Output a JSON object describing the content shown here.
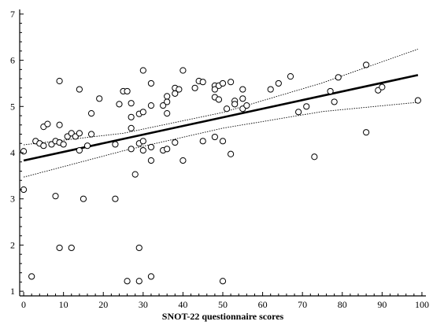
{
  "chart_data": {
    "type": "scatter",
    "xlabel": "SNOT-22 questionnaire scores",
    "ylabel": "",
    "xlim": [
      -1,
      101
    ],
    "ylim": [
      0.9,
      7.1
    ],
    "x_ticks": [
      0,
      10,
      20,
      30,
      40,
      50,
      60,
      70,
      80,
      90,
      100
    ],
    "y_ticks": [
      1,
      2,
      3,
      4,
      5,
      6,
      7
    ],
    "grid": false,
    "points": [
      {
        "x": 0,
        "y": 4.03
      },
      {
        "x": 0,
        "y": 3.2
      },
      {
        "x": 2,
        "y": 1.32
      },
      {
        "x": 3,
        "y": 4.25
      },
      {
        "x": 4,
        "y": 4.2
      },
      {
        "x": 5,
        "y": 4.56
      },
      {
        "x": 5,
        "y": 4.15
      },
      {
        "x": 6,
        "y": 4.62
      },
      {
        "x": 7,
        "y": 4.18
      },
      {
        "x": 8,
        "y": 4.25
      },
      {
        "x": 8,
        "y": 3.06
      },
      {
        "x": 9,
        "y": 4.22
      },
      {
        "x": 9,
        "y": 4.6
      },
      {
        "x": 9,
        "y": 5.55
      },
      {
        "x": 9,
        "y": 1.94
      },
      {
        "x": 10,
        "y": 4.18
      },
      {
        "x": 11,
        "y": 4.35
      },
      {
        "x": 12,
        "y": 4.42
      },
      {
        "x": 12,
        "y": 1.94
      },
      {
        "x": 13,
        "y": 4.35
      },
      {
        "x": 14,
        "y": 4.42
      },
      {
        "x": 14,
        "y": 4.05
      },
      {
        "x": 14,
        "y": 5.37
      },
      {
        "x": 15,
        "y": 3.0
      },
      {
        "x": 16,
        "y": 4.15
      },
      {
        "x": 17,
        "y": 4.4
      },
      {
        "x": 17,
        "y": 4.85
      },
      {
        "x": 19,
        "y": 5.17
      },
      {
        "x": 23,
        "y": 4.18
      },
      {
        "x": 23,
        "y": 3.0
      },
      {
        "x": 24,
        "y": 5.05
      },
      {
        "x": 25,
        "y": 5.33
      },
      {
        "x": 26,
        "y": 5.33
      },
      {
        "x": 26,
        "y": 1.22
      },
      {
        "x": 27,
        "y": 4.53
      },
      {
        "x": 27,
        "y": 4.08
      },
      {
        "x": 27,
        "y": 4.77
      },
      {
        "x": 27,
        "y": 5.07
      },
      {
        "x": 28,
        "y": 3.53
      },
      {
        "x": 29,
        "y": 4.2
      },
      {
        "x": 29,
        "y": 4.84
      },
      {
        "x": 29,
        "y": 1.94
      },
      {
        "x": 29,
        "y": 1.22
      },
      {
        "x": 30,
        "y": 4.25
      },
      {
        "x": 30,
        "y": 4.05
      },
      {
        "x": 30,
        "y": 4.88
      },
      {
        "x": 30,
        "y": 5.78
      },
      {
        "x": 32,
        "y": 5.5
      },
      {
        "x": 32,
        "y": 5.02
      },
      {
        "x": 32,
        "y": 4.12
      },
      {
        "x": 32,
        "y": 3.83
      },
      {
        "x": 32,
        "y": 1.32
      },
      {
        "x": 35,
        "y": 5.02
      },
      {
        "x": 35,
        "y": 4.05
      },
      {
        "x": 36,
        "y": 4.85
      },
      {
        "x": 36,
        "y": 5.1
      },
      {
        "x": 36,
        "y": 5.22
      },
      {
        "x": 36,
        "y": 4.08
      },
      {
        "x": 38,
        "y": 5.28
      },
      {
        "x": 38,
        "y": 5.4
      },
      {
        "x": 38,
        "y": 4.22
      },
      {
        "x": 39,
        "y": 5.37
      },
      {
        "x": 40,
        "y": 5.78
      },
      {
        "x": 40,
        "y": 3.83
      },
      {
        "x": 43,
        "y": 5.4
      },
      {
        "x": 44,
        "y": 5.55
      },
      {
        "x": 45,
        "y": 5.53
      },
      {
        "x": 45,
        "y": 4.25
      },
      {
        "x": 48,
        "y": 5.45
      },
      {
        "x": 48,
        "y": 5.37
      },
      {
        "x": 48,
        "y": 5.2
      },
      {
        "x": 48,
        "y": 4.34
      },
      {
        "x": 49,
        "y": 5.45
      },
      {
        "x": 49,
        "y": 5.15
      },
      {
        "x": 50,
        "y": 5.5
      },
      {
        "x": 50,
        "y": 4.25
      },
      {
        "x": 50,
        "y": 1.22
      },
      {
        "x": 51,
        "y": 4.95
      },
      {
        "x": 52,
        "y": 5.53
      },
      {
        "x": 52,
        "y": 3.97
      },
      {
        "x": 53,
        "y": 5.12
      },
      {
        "x": 53,
        "y": 5.05
      },
      {
        "x": 55,
        "y": 5.37
      },
      {
        "x": 55,
        "y": 5.17
      },
      {
        "x": 55,
        "y": 4.95
      },
      {
        "x": 56,
        "y": 5.02
      },
      {
        "x": 62,
        "y": 5.37
      },
      {
        "x": 64,
        "y": 5.5
      },
      {
        "x": 67,
        "y": 5.65
      },
      {
        "x": 69,
        "y": 4.88
      },
      {
        "x": 71,
        "y": 5.0
      },
      {
        "x": 73,
        "y": 3.91
      },
      {
        "x": 77,
        "y": 5.33
      },
      {
        "x": 78,
        "y": 5.1
      },
      {
        "x": 79,
        "y": 5.63
      },
      {
        "x": 86,
        "y": 5.9
      },
      {
        "x": 86,
        "y": 4.44
      },
      {
        "x": 89,
        "y": 5.35
      },
      {
        "x": 90,
        "y": 5.42
      },
      {
        "x": 99,
        "y": 5.13
      }
    ],
    "fit_line": {
      "x": [
        0,
        99
      ],
      "y": [
        3.83,
        5.68
      ]
    },
    "confidence_band": {
      "upper": {
        "x": [
          0,
          25,
          50,
          75,
          99
        ],
        "y": [
          4.17,
          4.42,
          4.87,
          5.51,
          6.24
        ]
      },
      "lower": {
        "x": [
          0,
          25,
          50,
          75,
          99
        ],
        "y": [
          3.47,
          4.04,
          4.53,
          4.89,
          5.09
        ]
      }
    }
  }
}
